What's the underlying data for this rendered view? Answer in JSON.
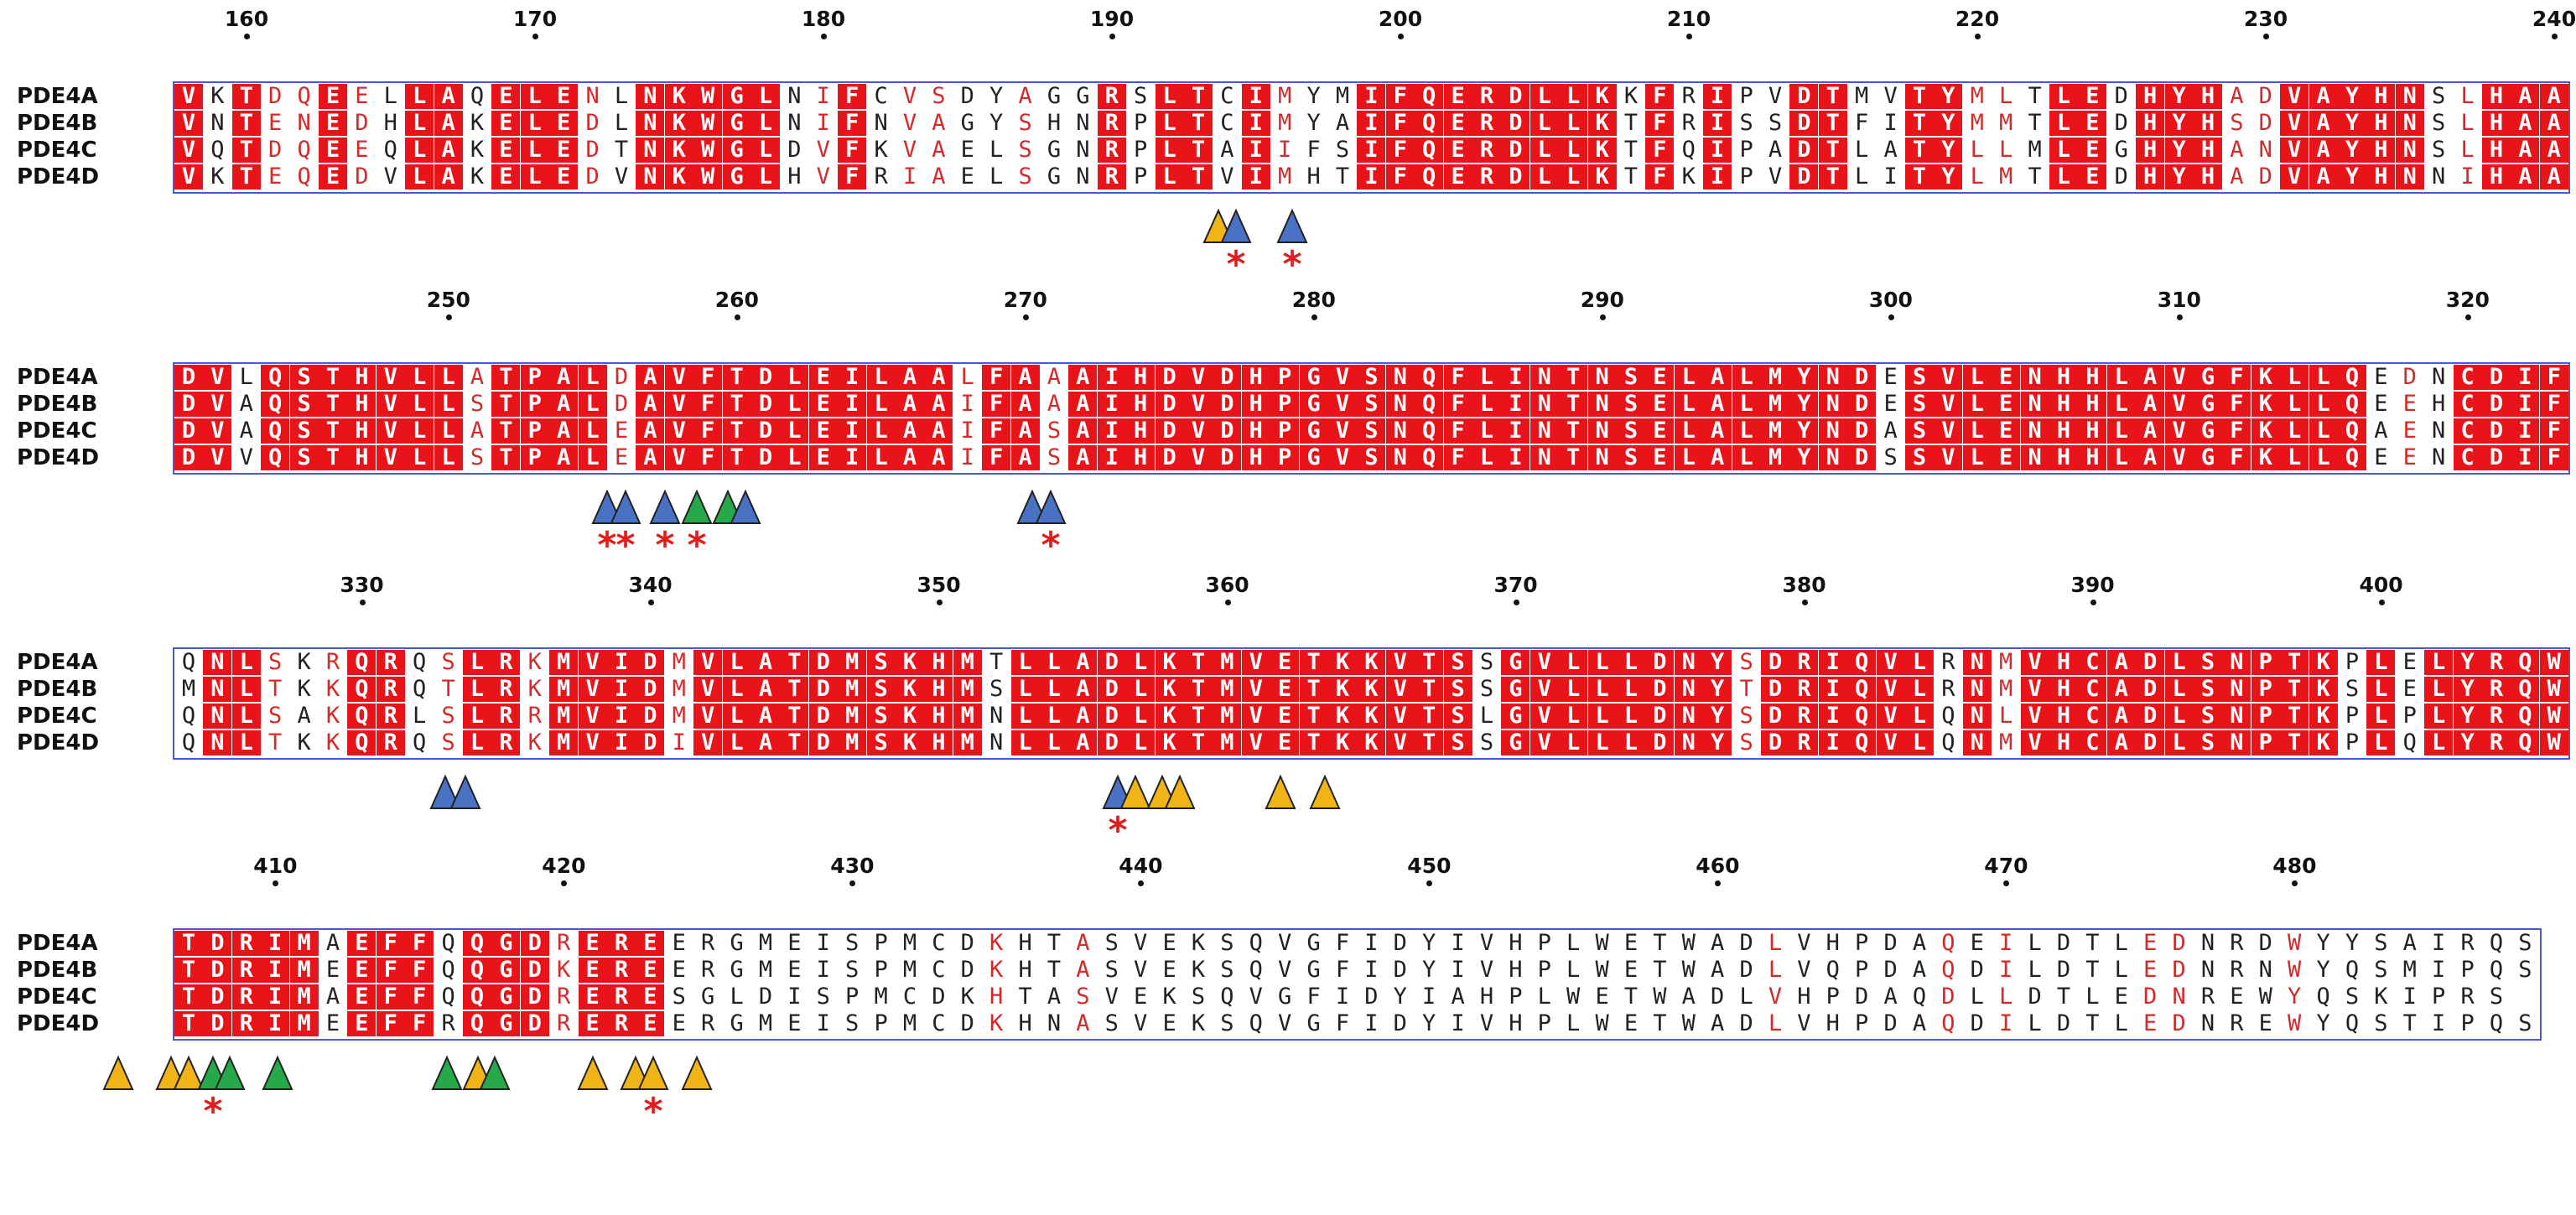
{
  "colors": {
    "identical": "#e8141a",
    "similar_text": "#d62a2a",
    "box_border": "#4a5ad6",
    "marker_blue": "#4a72c4",
    "marker_green": "#27a84a",
    "marker_orange": "#f1b416",
    "star": "#e21b1b"
  },
  "sequence_names": [
    "PDE4A",
    "PDE4B",
    "PDE4C",
    "PDE4D"
  ],
  "blocks": [
    {
      "start": 158,
      "ticks": [
        "160",
        "170",
        "180",
        "190",
        "200",
        "210",
        "220",
        "230",
        "240"
      ],
      "sequences": [
        "VKTDQEELLAQELENLNKWGLNIFCVSDYAGGRSLTCIMYMIFQERDLLKKFRIPVDTMVTYMLTLEDHYHADVAYHNSLHAA",
        "VNTENEDHLAKELEDLNKWGLNIFNVAGYSHNRPLTCIMYAIFQERDLLKTFRISSDTFITYMMTLEDHYHSDVAYHNSLHAA",
        "VQTDQEEQLAKELEDTNKWGLDVFKVAELSGNRPLTAIIFSIFQERDLLKTFQIPADTLATYLLMLEGHYHANVAYHNSLHAA",
        "VKTEQEDVLAKELEDVNKWGLHVFRIAELSGNRPLTVIMHTIFQERDLLKTFKIPVDTLITYLMTLEDHYHADVAYHNNIHAA"
      ],
      "markers": [
        {
          "color": "orange",
          "star": false
        },
        {
          "color": "blue",
          "star": true
        },
        {
          "color": "blue",
          "star": true
        }
      ]
    },
    {
      "start": 241,
      "ticks": [
        "250",
        "260",
        "270",
        "280",
        "290",
        "300",
        "310",
        "320"
      ],
      "sequences": [
        "DVLQSTHVLLATPALDAVFTDLEILAALFAAAIHDVDHPGVSNQFLINTNSELALMYNDESVLENHHLAVGFKLLQEDNCDIF",
        "DVAQSTHVLLSTPALDAVFTDLEILAAIFAAAIHDVDHPGVSNQFLINTNSELALMYNDESVLENHHLAVGFKLLQEEHCDIF",
        "DVAQSTHVLLATPALEAVFTDLEILAAIFASAIHDVDHPGVSNQFLINTNSELALMYNDASVLENHHLAVGFKLLQAENCDIF",
        "DVVQSTHVLLSTPALEAVFTDLEILAAIFASAIHDVDHPGVSNQFLINTNSELALMYNDSSVLENHHLAVGFKLLQEENCDIF"
      ],
      "markers": [
        {
          "color": "blue",
          "star": true
        },
        {
          "color": "blue",
          "star": true
        },
        {
          "color": "blue",
          "star": true
        },
        {
          "color": "green",
          "star": true
        },
        {
          "color": "green",
          "star": false
        },
        {
          "color": "blue",
          "star": false
        },
        {
          "color": "blue",
          "star": false
        },
        {
          "color": "blue",
          "star": true
        }
      ]
    },
    {
      "start": 324,
      "ticks": [
        "330",
        "340",
        "350",
        "360",
        "370",
        "380",
        "390",
        "400"
      ],
      "sequences": [
        "QNLSKRQRQSLRKMVIDMVLATDMSKHMTLLADLKTMVETKKVTSSGVLLLDNYSDRIQVLRNMVHCADLSNPTKPLELYRQW",
        "MNLTKKQRQTLRKMVIDMVLATDMSKHMSLLADLKTMVETKKVTSSGVLLLDNYTDRIQVLRNMVHCADLSNPTKSLELYRQW",
        "QNLSAKQRLSLRRMVIDMVLATDMSKHMNLLADLKTMVETKKVTSLGVLLLDNYSDRIQVLQNLVHCADLSNPTKPLPLYRQW",
        "QNLTKKQRQSLRKMVIDIVLATDMSKHMNLLADLKTMVETKKVTSSGVLLLDNYSDRIQVLQNMVHCADLSNPTKPLQLYRQW"
      ],
      "markers": [
        {
          "color": "blue",
          "star": false
        },
        {
          "color": "blue",
          "star": false
        },
        {
          "color": "blue",
          "star": true
        },
        {
          "color": "orange",
          "star": false
        },
        {
          "color": "orange",
          "star": false
        },
        {
          "color": "orange",
          "star": false
        },
        {
          "color": "orange",
          "star": false
        },
        {
          "color": "orange",
          "star": false
        }
      ]
    },
    {
      "start": 407,
      "ticks": [
        "410",
        "420",
        "430",
        "440",
        "450",
        "460",
        "470",
        "480"
      ],
      "sequences": [
        "TDRIMAEFFQQGDREREERGMEISPMCDKHTASVEKSQVGFIDYIVHPLWETWADLVHPDAQEILDTLEDNRDWYYSAIRQS",
        "TDRIMEEFFQQGDKEREERGMEISPMCDKHTASVEKSQVGFIDYIVHPLWETWADLVQPDAQDILDTLEDNRNWYQSMIPQS",
        "TDRIMAEFFQQGDRERESGLDISPMCDKHTASVEKSQVGFIDYIAHPLWETWADLVHPDAQDLLDTLEDNREWYQSKIPRS",
        "TDRIMEEFFRQGDREREERGMEISPMCDKHNASVEKSQVGFIDYIVHPLWETWADLVHPDAQDILDTLEDNREWYQSTIPQS"
      ],
      "markers": [
        {
          "color": "orange",
          "star": false
        },
        {
          "color": "orange",
          "star": false
        },
        {
          "color": "orange",
          "star": false
        },
        {
          "color": "green",
          "star": true
        },
        {
          "color": "green",
          "star": false
        },
        {
          "color": "green",
          "star": false
        },
        {
          "color": "green",
          "star": false
        },
        {
          "color": "orange",
          "star": false
        },
        {
          "color": "green",
          "star": false
        },
        {
          "color": "orange",
          "star": false
        },
        {
          "color": "orange",
          "star": false
        },
        {
          "color": "orange",
          "star": true
        },
        {
          "color": "orange",
          "star": false
        }
      ]
    }
  ]
}
